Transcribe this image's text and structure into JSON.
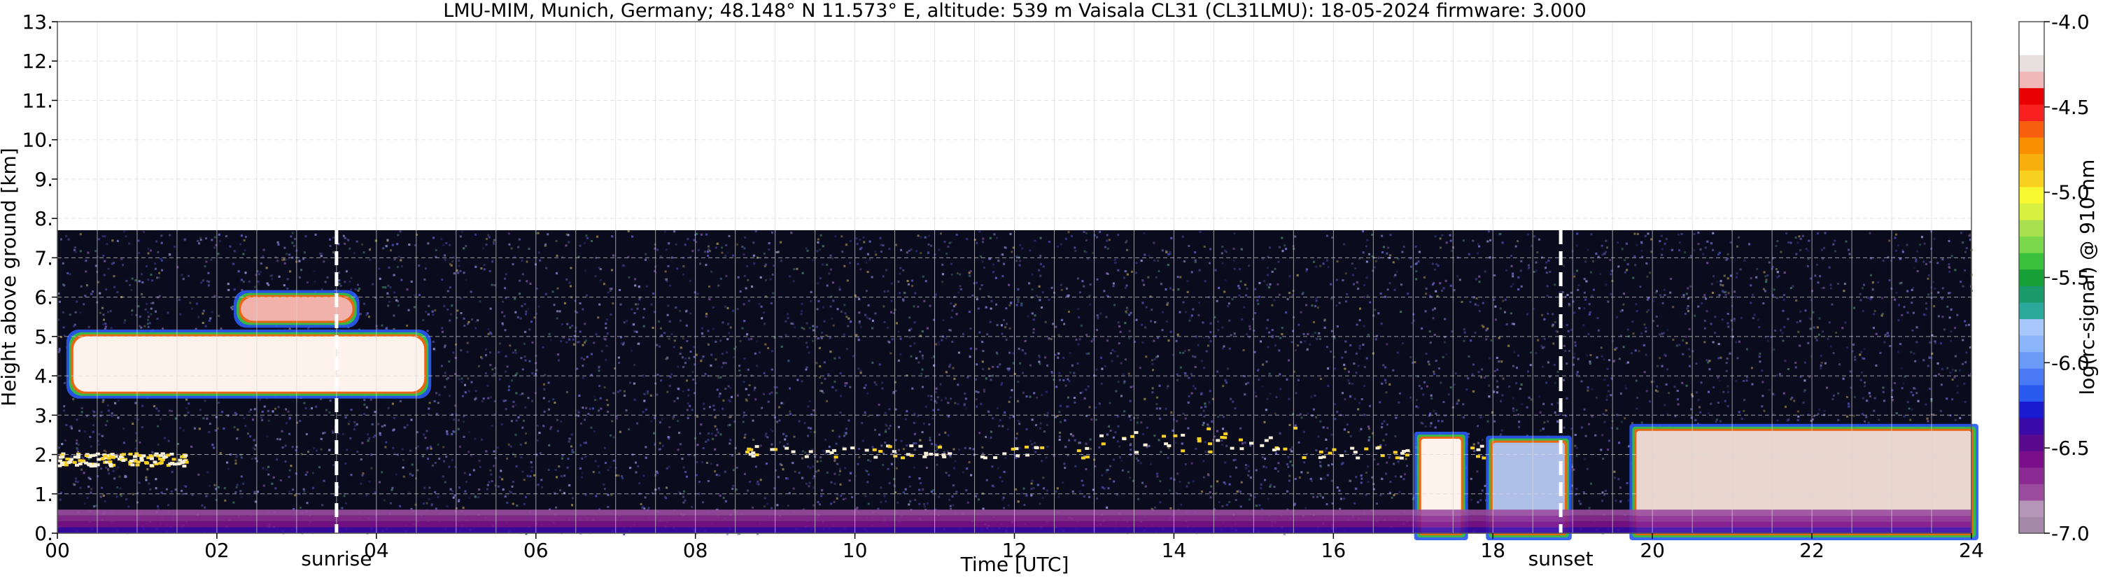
{
  "chart_data": {
    "type": "heatmap",
    "title": "LMU-MIM, Munich, Germany; 48.148° N 11.573° E, altitude: 539 m    Vaisala CL31 (CL31LMU): 18-05-2024    firmware: 3.000",
    "xlabel": "Time [UTC]",
    "ylabel": "Height above ground [km]",
    "xlim": [
      0,
      24
    ],
    "ylim": [
      0,
      13
    ],
    "x_ticks": [
      {
        "value": 0,
        "label": "00"
      },
      {
        "value": 2,
        "label": "02"
      },
      {
        "value": 4,
        "label": "04"
      },
      {
        "value": 6,
        "label": "06"
      },
      {
        "value": 8,
        "label": "08"
      },
      {
        "value": 10,
        "label": "10"
      },
      {
        "value": 12,
        "label": "12"
      },
      {
        "value": 14,
        "label": "14"
      },
      {
        "value": 16,
        "label": "16"
      },
      {
        "value": 18,
        "label": "18"
      },
      {
        "value": 20,
        "label": "20"
      },
      {
        "value": 22,
        "label": "22"
      },
      {
        "value": 24,
        "label": "24"
      }
    ],
    "y_ticks": [
      {
        "value": 0,
        "label": "0."
      },
      {
        "value": 1,
        "label": "1."
      },
      {
        "value": 2,
        "label": "2."
      },
      {
        "value": 3,
        "label": "3."
      },
      {
        "value": 4,
        "label": "4."
      },
      {
        "value": 5,
        "label": "5."
      },
      {
        "value": 6,
        "label": "6."
      },
      {
        "value": 7,
        "label": "7."
      },
      {
        "value": 8,
        "label": "8."
      },
      {
        "value": 9,
        "label": "9."
      },
      {
        "value": 10,
        "label": "10."
      },
      {
        "value": 11,
        "label": "11."
      },
      {
        "value": 12,
        "label": "12."
      },
      {
        "value": 13,
        "label": "13."
      }
    ],
    "measurement_top_km": 7.7,
    "events": [
      {
        "name": "sunrise",
        "label": "sunrise",
        "time": 3.5
      },
      {
        "name": "sunset",
        "label": "sunset",
        "time": 18.85
      }
    ],
    "colorbar": {
      "label": "log(rc-signal) @ 910 nm",
      "range": [
        -7.0,
        -4.0
      ],
      "ticks": [
        {
          "value": -4.0,
          "label": "-4.0"
        },
        {
          "value": -4.5,
          "label": "-4.5"
        },
        {
          "value": -5.0,
          "label": "-5.0"
        },
        {
          "value": -5.5,
          "label": "-5.5"
        },
        {
          "value": -6.0,
          "label": "-6.0"
        },
        {
          "value": -6.5,
          "label": "-6.5"
        },
        {
          "value": -7.0,
          "label": "-7.0"
        }
      ],
      "colors": [
        "#a589a8",
        "#b596b8",
        "#9a4b9e",
        "#8a2a92",
        "#7b0f8a",
        "#5a0a8e",
        "#3a0aa8",
        "#1a1ad0",
        "#2a5af0",
        "#4a7af5",
        "#6a9af8",
        "#8ab5fa",
        "#a8c8fb",
        "#2aa89a",
        "#1a9a6a",
        "#18a038",
        "#3ac03a",
        "#7ad84a",
        "#a8e050",
        "#d8f040",
        "#f8f830",
        "#f8d020",
        "#f8b010",
        "#f89000",
        "#f86010",
        "#f82020",
        "#e80000",
        "#f0b8b8",
        "#e8e0e0",
        "#ffffff",
        "#ffffff"
      ]
    },
    "grid": true,
    "features": [
      {
        "kind": "cloud",
        "t0": 0.2,
        "t1": 4.6,
        "base_km": 3.6,
        "top_km": 5.0,
        "signal": -4.0
      },
      {
        "kind": "cloud",
        "t0": 2.3,
        "t1": 3.7,
        "base_km": 5.4,
        "top_km": 6.0,
        "signal": -4.3
      },
      {
        "kind": "layer",
        "t0": 0.0,
        "t1": 1.6,
        "height_km": 1.9,
        "signal": -4.2
      },
      {
        "kind": "layer",
        "t0": 8.5,
        "t1": 18.9,
        "height_km": 2.1,
        "signal": -4.1
      },
      {
        "kind": "precip",
        "t0": 17.1,
        "t1": 17.6,
        "base_km": 0.0,
        "top_km": 2.4,
        "signal": -4.0
      },
      {
        "kind": "precip",
        "t0": 18.0,
        "t1": 18.9,
        "base_km": 0.0,
        "top_km": 2.3,
        "signal": -5.8
      },
      {
        "kind": "precip",
        "t0": 19.8,
        "t1": 24.0,
        "base_km": 0.0,
        "top_km": 2.6,
        "signal": -4.2
      },
      {
        "kind": "boundary_layer",
        "t0": 0.0,
        "t1": 24.0,
        "base_km": 0.0,
        "top_km": 0.6,
        "signal": -6.6
      }
    ]
  }
}
